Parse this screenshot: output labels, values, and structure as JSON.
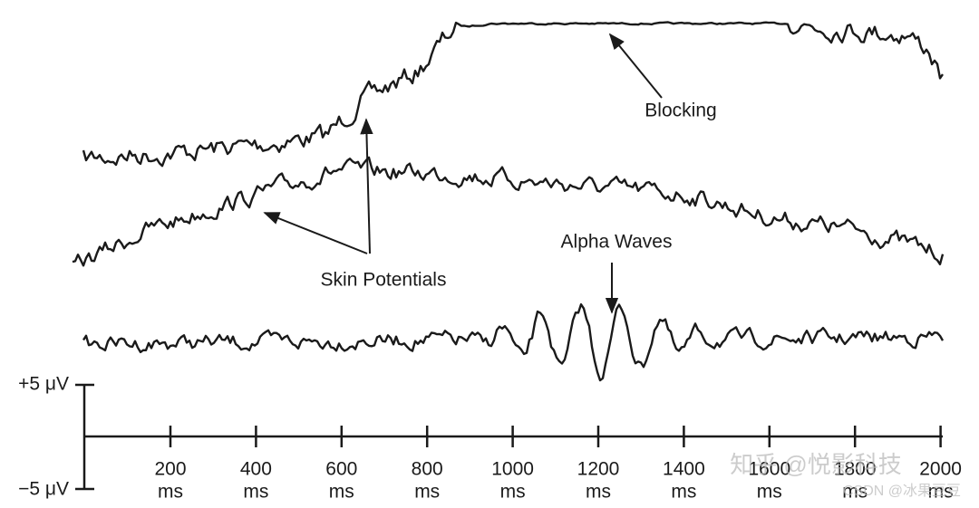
{
  "annotations": {
    "blocking": "Blocking",
    "skin_potentials": "Skin Potentials",
    "alpha_waves": "Alpha Waves"
  },
  "scale_bar": {
    "top": "+5 μV",
    "bottom": "−5 μV"
  },
  "time_axis": {
    "ticks": [
      {
        "label": "200",
        "unit": "ms"
      },
      {
        "label": "400",
        "unit": "ms"
      },
      {
        "label": "600",
        "unit": "ms"
      },
      {
        "label": "800",
        "unit": "ms"
      },
      {
        "label": "1000",
        "unit": "ms"
      },
      {
        "label": "1200",
        "unit": "ms"
      },
      {
        "label": "1400",
        "unit": "ms"
      },
      {
        "label": "1600",
        "unit": "ms"
      },
      {
        "label": "1800",
        "unit": "ms"
      },
      {
        "label": "2000",
        "unit": "ms"
      }
    ]
  },
  "watermarks": {
    "zhihu": "知乎 @悦影科技",
    "csdn": "CSDN @冰果豆豆"
  }
}
